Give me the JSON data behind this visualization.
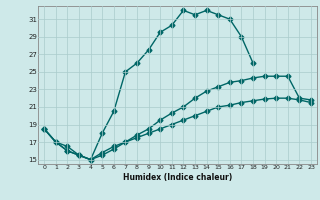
{
  "xlabel": "Humidex (Indice chaleur)",
  "background_color": "#cee9e9",
  "grid_color": "#aacccc",
  "line_color": "#006666",
  "xlim": [
    -0.5,
    23.5
  ],
  "ylim": [
    14.5,
    32.5
  ],
  "yticks": [
    15,
    17,
    19,
    21,
    23,
    25,
    27,
    29,
    31
  ],
  "xticks": [
    0,
    1,
    2,
    3,
    4,
    5,
    6,
    7,
    8,
    9,
    10,
    11,
    12,
    13,
    14,
    15,
    16,
    17,
    18,
    19,
    20,
    21,
    22,
    23
  ],
  "line1_x": [
    0,
    1,
    2,
    3,
    4,
    5,
    6,
    7,
    8,
    9,
    10,
    11,
    12,
    13,
    14,
    15,
    16,
    17,
    18
  ],
  "line1_y": [
    18.5,
    17.0,
    16.5,
    15.5,
    15.0,
    18.0,
    20.5,
    25.0,
    26.0,
    27.5,
    29.5,
    30.3,
    32.0,
    31.5,
    32.0,
    31.5,
    31.0,
    29.0,
    26.0
  ],
  "line2_x": [
    0,
    1,
    2,
    3,
    4,
    5,
    6,
    7,
    8,
    9,
    10,
    11,
    12,
    13,
    14,
    15,
    16,
    17,
    18,
    19,
    20,
    21,
    22,
    23
  ],
  "line2_y": [
    18.5,
    17.0,
    16.0,
    15.5,
    15.0,
    15.5,
    16.2,
    17.0,
    17.8,
    18.5,
    19.5,
    20.3,
    21.0,
    22.0,
    22.8,
    23.3,
    23.8,
    24.0,
    24.3,
    24.5,
    24.5,
    24.5,
    22.0,
    21.8
  ],
  "line3_x": [
    0,
    1,
    2,
    3,
    4,
    5,
    6,
    7,
    8,
    9,
    10,
    11,
    12,
    13,
    14,
    15,
    16,
    17,
    18,
    19,
    20,
    21,
    22,
    23
  ],
  "line3_y": [
    18.5,
    17.0,
    16.0,
    15.5,
    15.0,
    15.8,
    16.5,
    17.0,
    17.5,
    18.0,
    18.5,
    19.0,
    19.5,
    20.0,
    20.5,
    21.0,
    21.2,
    21.5,
    21.7,
    21.9,
    22.0,
    22.0,
    21.8,
    21.5
  ]
}
